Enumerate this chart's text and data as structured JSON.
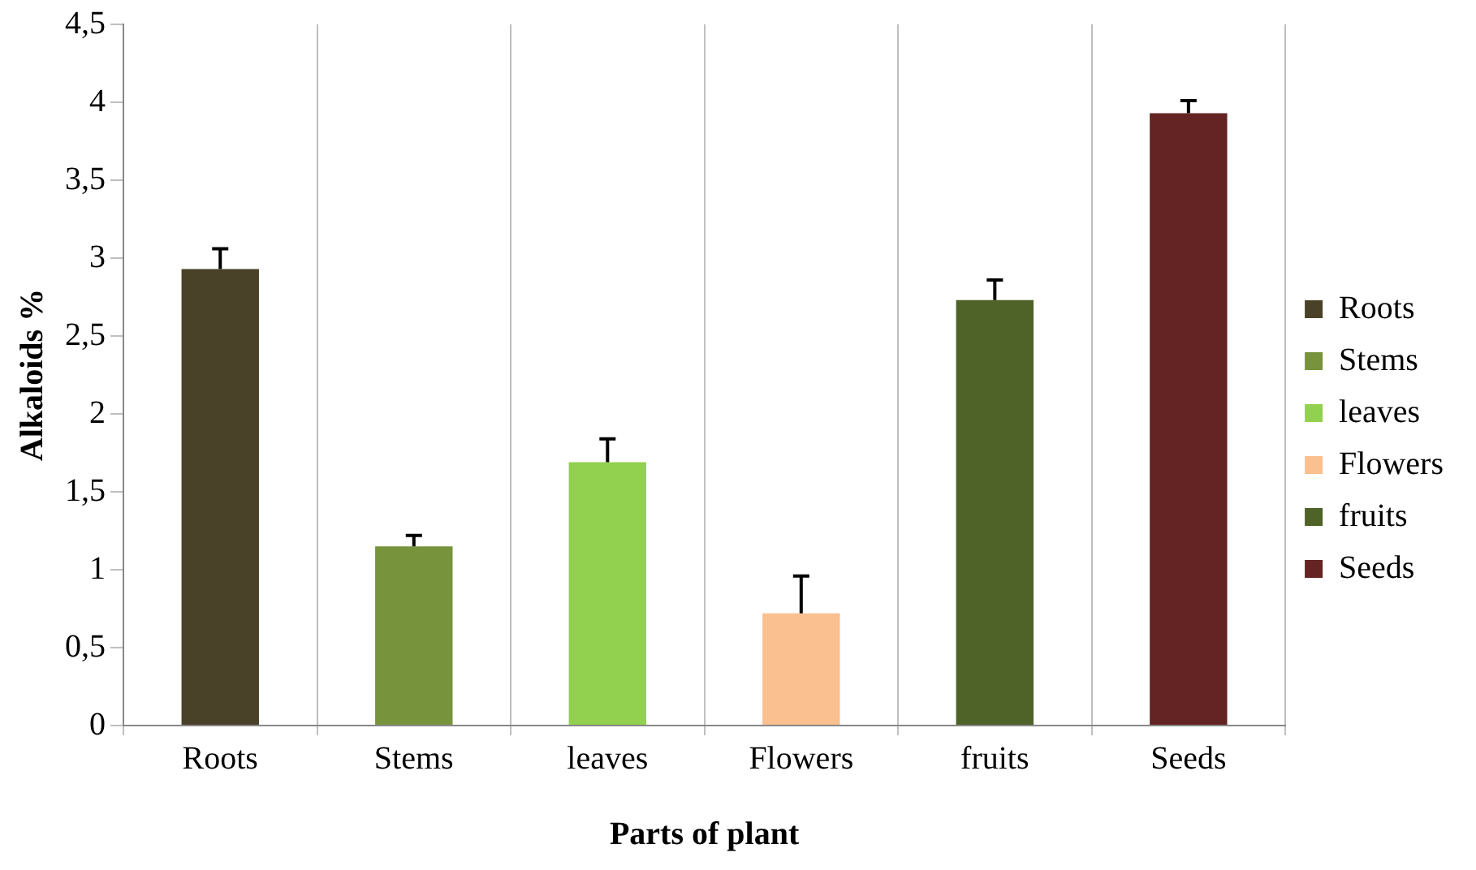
{
  "chart_data": {
    "type": "bar",
    "xlabel": "Parts of plant",
    "ylabel": "Alkaloids %",
    "categories": [
      "Roots",
      "Stems",
      "leaves",
      "Flowers",
      "fruits",
      "Seeds"
    ],
    "series": [
      {
        "name": "Roots",
        "color": "#4a4228",
        "values": [
          2.93,
          null,
          null,
          null,
          null,
          null
        ],
        "errors": [
          [
            2.93,
            3.06
          ],
          null,
          null,
          null,
          null,
          null
        ]
      },
      {
        "name": "Stems",
        "color": "#77933c",
        "values": [
          null,
          1.15,
          null,
          null,
          null,
          null
        ],
        "errors": [
          null,
          [
            1.15,
            1.22
          ],
          null,
          null,
          null,
          null
        ]
      },
      {
        "name": "leaves",
        "color": "#92d050",
        "values": [
          null,
          null,
          1.69,
          null,
          null,
          null
        ],
        "errors": [
          null,
          null,
          [
            1.69,
            1.84
          ],
          null,
          null,
          null
        ]
      },
      {
        "name": "Flowers",
        "color": "#fac090",
        "values": [
          null,
          null,
          null,
          0.72,
          null,
          null
        ],
        "errors": [
          null,
          null,
          null,
          [
            0.72,
            0.96
          ],
          null,
          null
        ]
      },
      {
        "name": "fruits",
        "color": "#4f6228",
        "values": [
          null,
          null,
          null,
          null,
          2.73,
          null
        ],
        "errors": [
          null,
          null,
          null,
          null,
          [
            2.73,
            2.86
          ],
          null
        ]
      },
      {
        "name": "Seeds",
        "color": "#632423",
        "values": [
          null,
          null,
          null,
          null,
          null,
          3.93
        ],
        "errors": [
          null,
          null,
          null,
          null,
          null,
          [
            3.93,
            4.01
          ]
        ]
      }
    ],
    "ylim": [
      0,
      4.5
    ],
    "yticks": [
      0,
      {
        "value": 0.5,
        "label": "0,5"
      },
      1,
      {
        "value": 1.5,
        "label": "1,5"
      },
      2,
      {
        "value": 2.5,
        "label": "2,5"
      },
      3,
      {
        "value": 3.5,
        "label": "3,5"
      },
      4,
      {
        "value": 4.5,
        "label": "4,5"
      }
    ],
    "grid": "x",
    "legend": "right"
  }
}
